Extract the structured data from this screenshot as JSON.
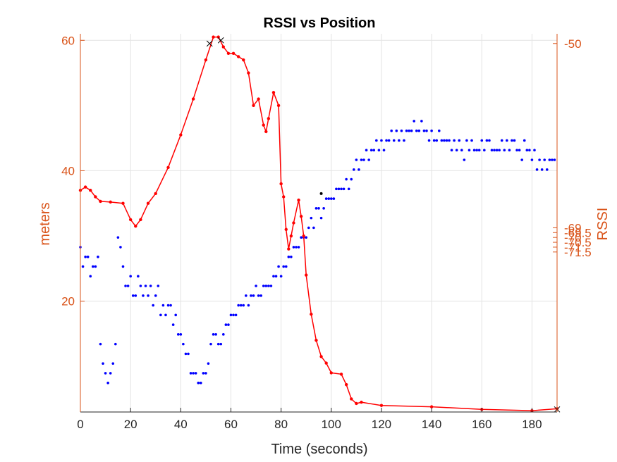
{
  "chart_data": {
    "type": "scatter",
    "title": "RSSI vs Position",
    "xlabel": "Time (seconds)",
    "ylabel_left": "meters",
    "ylabel_right": "RSSI",
    "xlim": [
      0,
      190
    ],
    "ylim_left": [
      3,
      61
    ],
    "ylim_right": [
      -88,
      -49
    ],
    "xticks": [
      "0",
      "20",
      "40",
      "60",
      "80",
      "100",
      "120",
      "140",
      "160",
      "180"
    ],
    "yticks_left": [
      "20",
      "40",
      "60"
    ],
    "yticks_right": [
      "-50",
      "-69",
      "-69.5",
      "-70",
      "-70.5",
      "-71",
      "-71.5"
    ],
    "grid": true,
    "colors": {
      "meters": "#ff0000",
      "rssi": "#0000ff",
      "axis_right": "#d95319",
      "axis_left": "#d95319"
    },
    "series": [
      {
        "axis": "left",
        "style": "line+dots",
        "color": "#ff0000",
        "x": [
          0,
          2,
          4,
          6,
          8,
          12,
          17,
          20,
          22,
          24,
          27,
          30,
          35,
          40,
          45,
          50,
          53,
          55,
          57,
          59,
          61,
          63,
          65,
          67,
          69,
          71,
          73,
          74,
          75,
          77,
          79,
          80,
          81,
          82,
          83,
          84,
          85,
          87,
          88,
          89,
          90,
          92,
          94,
          96,
          98,
          100,
          104,
          106,
          108,
          110,
          112,
          120,
          140,
          160,
          180,
          190
        ],
        "y": [
          37,
          37.5,
          37,
          36,
          35.3,
          35.2,
          35,
          32.5,
          31.5,
          32.5,
          35,
          36.5,
          40.5,
          45.5,
          51,
          57,
          60.5,
          60.5,
          59,
          58,
          58,
          57.5,
          57,
          55,
          50,
          51,
          47,
          46,
          48,
          52,
          50,
          38,
          36,
          31,
          28,
          30,
          32,
          35.5,
          33,
          30,
          24,
          18,
          14,
          11.5,
          10.5,
          9,
          8.8,
          7.2,
          5,
          4.3,
          4.5,
          4,
          3.8,
          3.4,
          3.2,
          3.5
        ]
      },
      {
        "axis": "right",
        "style": "dots",
        "color": "#0000ff",
        "x": [
          0,
          1,
          2,
          3,
          4,
          5,
          6,
          7,
          8,
          9,
          10,
          11,
          12,
          13,
          14,
          15,
          16,
          17,
          18,
          19,
          20,
          21,
          22,
          23,
          24,
          25,
          26,
          27,
          28,
          29,
          30,
          31,
          32,
          33,
          34,
          35,
          36,
          37,
          38,
          39,
          40,
          41,
          42,
          43,
          44,
          45,
          46,
          47,
          48,
          49,
          50,
          51,
          52,
          53,
          54,
          55,
          56,
          57,
          58,
          59,
          60,
          61,
          62,
          63,
          64,
          65,
          66,
          67,
          68,
          69,
          70,
          71,
          72,
          73,
          74,
          75,
          76,
          77,
          78,
          79,
          80,
          81,
          82,
          83,
          84,
          85,
          86,
          87,
          88,
          89,
          90,
          91,
          92,
          93,
          94,
          95,
          96,
          97,
          98,
          99,
          100,
          101,
          102,
          103,
          104,
          105,
          106,
          107,
          108,
          109,
          110,
          111,
          112,
          113,
          114,
          115,
          116,
          117,
          118,
          119,
          120,
          121,
          122,
          123,
          124,
          125,
          126,
          127,
          128,
          129,
          130,
          131,
          132,
          133,
          134,
          135,
          136,
          137,
          138,
          139,
          140,
          141,
          142,
          143,
          144,
          145,
          146,
          147,
          148,
          149,
          150,
          151,
          152,
          153,
          154,
          155,
          156,
          157,
          158,
          159,
          160,
          161,
          162,
          163,
          164,
          165,
          166,
          167,
          168,
          169,
          170,
          171,
          172,
          173,
          174,
          175,
          176,
          177,
          178,
          179,
          180,
          181,
          182,
          183,
          184,
          185,
          186,
          187,
          188,
          189
        ],
        "y": [
          -71,
          -73,
          -72,
          -72,
          -74,
          -73,
          -73,
          -72,
          -81,
          -83,
          -84,
          -85,
          -84,
          -83,
          -81,
          -70,
          -71,
          -73,
          -75,
          -75,
          -74,
          -76,
          -76,
          -74,
          -75,
          -76,
          -75,
          -76,
          -75,
          -77,
          -76,
          -75,
          -78,
          -77,
          -78,
          -77,
          -77,
          -79,
          -78,
          -80,
          -80,
          -81,
          -82,
          -82,
          -84,
          -84,
          -84,
          -85,
          -85,
          -84,
          -84,
          -83,
          -81,
          -80,
          -80,
          -81,
          -81,
          -80,
          -79,
          -79,
          -78,
          -78,
          -78,
          -77,
          -77,
          -77,
          -76,
          -77,
          -76,
          -76,
          -75,
          -76,
          -76,
          -75,
          -75,
          -75,
          -75,
          -74,
          -74,
          -73,
          -74,
          -73,
          -73,
          -72,
          -72,
          -71,
          -71,
          -71,
          -70,
          -70,
          -70,
          -69,
          -68,
          -69,
          -67,
          -67,
          -68,
          -67,
          -66,
          -66,
          -66,
          -66,
          -65,
          -65,
          -65,
          -65,
          -64,
          -65,
          -64,
          -63,
          -62,
          -63,
          -62,
          -62,
          -61,
          -62,
          -61,
          -61,
          -60,
          -61,
          -60,
          -61,
          -60,
          -60,
          -59,
          -60,
          -59,
          -60,
          -59,
          -60,
          -59,
          -59,
          -59,
          -58,
          -59,
          -59,
          -58,
          -59,
          -59,
          -60,
          -59,
          -60,
          -60,
          -59,
          -60,
          -60,
          -60,
          -60,
          -61,
          -60,
          -61,
          -60,
          -61,
          -62,
          -60,
          -61,
          -60,
          -61,
          -61,
          -61,
          -60,
          -61,
          -60,
          -60,
          -61,
          -61,
          -61,
          -61,
          -60,
          -61,
          -60,
          -61,
          -60,
          -60,
          -61,
          -61,
          -62,
          -60,
          -61,
          -61,
          -62,
          -61,
          -63,
          -62,
          -63,
          -62,
          -63,
          -62,
          -62,
          -62
        ]
      }
    ],
    "markers": [
      {
        "x": 51.5,
        "y": 59.5,
        "symbol": "x"
      },
      {
        "x": 56,
        "y": 60,
        "symbol": "x"
      },
      {
        "x": 96,
        "y": 36.5,
        "symbol": "dot"
      },
      {
        "x": 190,
        "y": 3.4,
        "symbol": "x"
      }
    ]
  }
}
